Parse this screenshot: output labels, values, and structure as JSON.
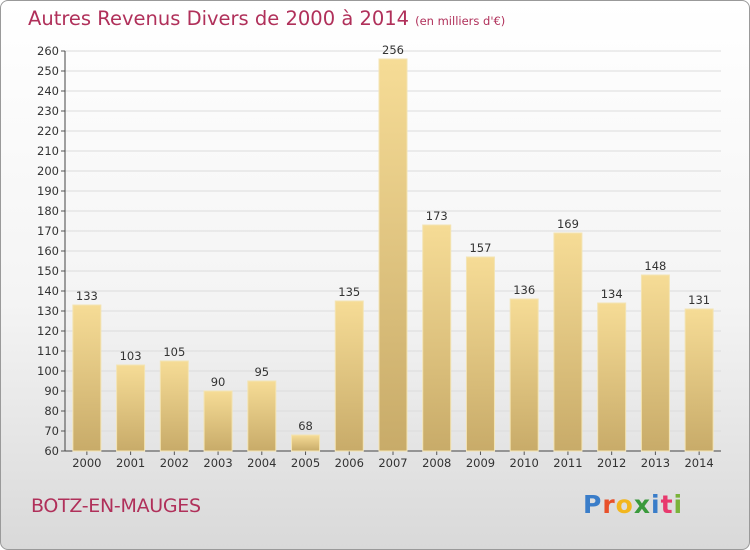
{
  "header": {
    "title": "Autres Revenus Divers de 2000 à 2014",
    "subtitle": "(en milliers d'€)"
  },
  "commune": "BOTZ-EN-MAUGES",
  "logo": {
    "text": "Proxiti",
    "colors": [
      "#3a7dc9",
      "#e8502a",
      "#f2b61e",
      "#3a9a3c",
      "#3a7dc9",
      "#e83a6e",
      "#7ab33a"
    ]
  },
  "chart_data": {
    "type": "bar",
    "title": "Autres Revenus Divers de 2000 à 2014",
    "subtitle": "(en milliers d'€)",
    "categories": [
      "2000",
      "2001",
      "2002",
      "2003",
      "2004",
      "2005",
      "2006",
      "2007",
      "2008",
      "2009",
      "2010",
      "2011",
      "2012",
      "2013",
      "2014"
    ],
    "values": [
      133,
      103,
      105,
      90,
      95,
      68,
      135,
      256,
      173,
      157,
      136,
      169,
      134,
      148,
      131
    ],
    "ylim": [
      60,
      260
    ],
    "yticks": [
      60,
      70,
      80,
      90,
      100,
      110,
      120,
      130,
      140,
      150,
      160,
      170,
      180,
      190,
      200,
      210,
      220,
      230,
      240,
      250,
      260
    ],
    "grid": "horizontal",
    "bar_color_light": "#f6dc96",
    "bar_color_dark": "#c8ab69",
    "bar_edge": "#f3e4b4"
  }
}
